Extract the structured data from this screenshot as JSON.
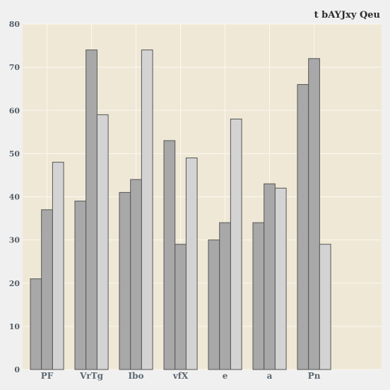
{
  "chart_data": {
    "type": "bar",
    "title": "t bAYJxy Qeu",
    "xlabel": "",
    "ylabel": "",
    "categories": [
      "PF",
      "VrTg",
      "Ibo",
      "vfX",
      "e",
      "a",
      "Pn"
    ],
    "series": [
      {
        "values": [
          21,
          39,
          41,
          53,
          30,
          34,
          66
        ]
      },
      {
        "values": [
          37,
          74,
          44,
          29,
          34,
          43,
          72
        ]
      },
      {
        "values": [
          48,
          59,
          74,
          49,
          58,
          42,
          29
        ]
      }
    ],
    "ylim": [
      0,
      80
    ],
    "yticks": [
      "0",
      "10",
      "20",
      "30",
      "40",
      "50",
      "60",
      "70",
      "80"
    ],
    "grid": true,
    "legend": "none",
    "colors": {
      "background": "#f0f0f0",
      "plot_bg": "#efe8d6",
      "grid": "#fbf8f0",
      "bar_stroke": "#555555",
      "series": [
        "#a8a8a8",
        "#a8a8a8",
        "#d3d3d3"
      ]
    }
  }
}
